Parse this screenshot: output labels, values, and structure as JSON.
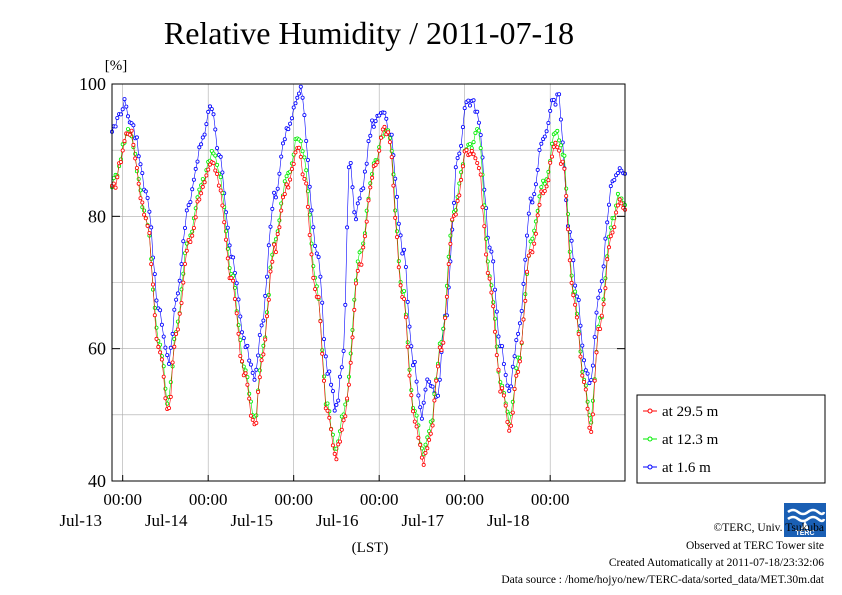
{
  "chart_data": {
    "type": "line",
    "title": "Relative Humidity / 2011-07-18",
    "ylabel": "[%]",
    "xlabel": "(LST)",
    "ylim": [
      40,
      100
    ],
    "yticks": [
      40,
      60,
      80,
      100
    ],
    "xlim": [
      0,
      6
    ],
    "x_unit": "days from 2011-07-12 21:00 LST, one value per 30 min",
    "x_ticks": [
      {
        "x": 0.125,
        "time": "00:00",
        "date": "Jul-13"
      },
      {
        "x": 1.125,
        "time": "00:00",
        "date": "Jul-14"
      },
      {
        "x": 2.125,
        "time": "00:00",
        "date": "Jul-15"
      },
      {
        "x": 3.125,
        "time": "00:00",
        "date": "Jul-16"
      },
      {
        "x": 4.125,
        "time": "00:00",
        "date": "Jul-17"
      },
      {
        "x": 5.125,
        "time": "00:00",
        "date": "Jul-18"
      }
    ],
    "grid": true,
    "legend_position": "right-outside",
    "series": [
      {
        "name": "at 29.5 m",
        "color": "#ff0000",
        "marker": "circle",
        "anchors": [
          [
            0,
            84
          ],
          [
            0.2,
            93
          ],
          [
            0.4,
            80
          ],
          [
            0.55,
            60
          ],
          [
            0.66,
            51
          ],
          [
            0.75,
            62
          ],
          [
            0.9,
            76
          ],
          [
            1.05,
            84
          ],
          [
            1.18,
            88
          ],
          [
            1.25,
            85
          ],
          [
            1.4,
            70
          ],
          [
            1.55,
            56
          ],
          [
            1.67,
            48
          ],
          [
            1.75,
            58
          ],
          [
            1.9,
            75
          ],
          [
            2.05,
            85
          ],
          [
            2.18,
            91
          ],
          [
            2.23,
            87
          ],
          [
            2.4,
            68
          ],
          [
            2.52,
            50
          ],
          [
            2.62,
            44
          ],
          [
            2.72,
            50
          ],
          [
            2.9,
            73
          ],
          [
            3.07,
            87
          ],
          [
            3.18,
            93
          ],
          [
            3.23,
            92
          ],
          [
            3.4,
            68
          ],
          [
            3.53,
            50
          ],
          [
            3.64,
            43
          ],
          [
            3.72,
            47
          ],
          [
            3.85,
            60
          ],
          [
            4.0,
            80
          ],
          [
            4.15,
            90
          ],
          [
            4.22,
            90
          ],
          [
            4.28,
            88
          ],
          [
            4.42,
            70
          ],
          [
            4.55,
            54
          ],
          [
            4.65,
            48
          ],
          [
            4.75,
            57
          ],
          [
            4.9,
            75
          ],
          [
            5.05,
            84
          ],
          [
            5.2,
            91
          ],
          [
            5.27,
            88
          ],
          [
            5.4,
            68
          ],
          [
            5.52,
            55
          ],
          [
            5.6,
            48
          ],
          [
            5.7,
            63
          ],
          [
            5.85,
            78
          ],
          [
            5.92,
            82
          ],
          [
            6.0,
            81
          ]
        ]
      },
      {
        "name": "at 12.3 m",
        "color": "#00ee00",
        "marker": "circle",
        "anchors": [
          [
            0,
            85
          ],
          [
            0.2,
            93
          ],
          [
            0.4,
            80
          ],
          [
            0.55,
            61
          ],
          [
            0.66,
            52
          ],
          [
            0.75,
            63
          ],
          [
            0.9,
            77
          ],
          [
            1.05,
            85
          ],
          [
            1.18,
            90
          ],
          [
            1.25,
            87
          ],
          [
            1.4,
            71
          ],
          [
            1.55,
            57
          ],
          [
            1.67,
            49
          ],
          [
            1.75,
            59
          ],
          [
            1.9,
            76
          ],
          [
            2.05,
            86
          ],
          [
            2.18,
            92
          ],
          [
            2.23,
            90
          ],
          [
            2.4,
            69
          ],
          [
            2.52,
            51
          ],
          [
            2.62,
            45
          ],
          [
            2.72,
            51
          ],
          [
            2.9,
            74
          ],
          [
            3.07,
            88
          ],
          [
            3.18,
            93
          ],
          [
            3.23,
            93
          ],
          [
            3.4,
            69
          ],
          [
            3.53,
            51
          ],
          [
            3.64,
            44
          ],
          [
            3.72,
            48
          ],
          [
            3.85,
            61
          ],
          [
            4.0,
            81
          ],
          [
            4.15,
            90
          ],
          [
            4.22,
            91
          ],
          [
            4.28,
            93
          ],
          [
            4.42,
            71
          ],
          [
            4.55,
            55
          ],
          [
            4.65,
            49
          ],
          [
            4.75,
            58
          ],
          [
            4.9,
            76
          ],
          [
            5.05,
            85
          ],
          [
            5.2,
            93
          ],
          [
            5.27,
            90
          ],
          [
            5.4,
            69
          ],
          [
            5.52,
            56
          ],
          [
            5.6,
            49
          ],
          [
            5.7,
            64
          ],
          [
            5.85,
            79
          ],
          [
            5.92,
            83
          ],
          [
            6.0,
            82
          ]
        ]
      },
      {
        "name": "at 1.6 m",
        "color": "#0000ff",
        "marker": "circle",
        "anchors": [
          [
            0,
            93
          ],
          [
            0.15,
            97
          ],
          [
            0.25,
            93
          ],
          [
            0.4,
            84
          ],
          [
            0.55,
            66
          ],
          [
            0.66,
            58
          ],
          [
            0.75,
            67
          ],
          [
            0.9,
            82
          ],
          [
            1.05,
            91
          ],
          [
            1.15,
            97
          ],
          [
            1.25,
            90
          ],
          [
            1.4,
            74
          ],
          [
            1.55,
            61
          ],
          [
            1.67,
            56
          ],
          [
            1.75,
            64
          ],
          [
            1.9,
            83
          ],
          [
            2.05,
            93
          ],
          [
            2.15,
            97
          ],
          [
            2.2,
            99
          ],
          [
            2.4,
            75
          ],
          [
            2.52,
            57
          ],
          [
            2.62,
            51
          ],
          [
            2.7,
            58
          ],
          [
            2.78,
            88
          ],
          [
            2.85,
            80
          ],
          [
            2.92,
            84
          ],
          [
            3.05,
            94
          ],
          [
            3.18,
            96
          ],
          [
            3.25,
            93
          ],
          [
            3.4,
            75
          ],
          [
            3.53,
            58
          ],
          [
            3.62,
            50
          ],
          [
            3.7,
            55
          ],
          [
            3.8,
            52
          ],
          [
            3.9,
            65
          ],
          [
            4.05,
            89
          ],
          [
            4.15,
            97
          ],
          [
            4.22,
            97
          ],
          [
            4.28,
            95
          ],
          [
            4.42,
            76
          ],
          [
            4.55,
            60
          ],
          [
            4.65,
            54
          ],
          [
            4.75,
            62
          ],
          [
            4.9,
            82
          ],
          [
            5.05,
            92
          ],
          [
            5.15,
            97
          ],
          [
            5.22,
            98
          ],
          [
            5.35,
            78
          ],
          [
            5.45,
            67
          ],
          [
            5.52,
            58
          ],
          [
            5.6,
            55
          ],
          [
            5.7,
            69
          ],
          [
            5.85,
            85
          ],
          [
            5.92,
            87
          ],
          [
            6.0,
            87
          ]
        ]
      }
    ]
  },
  "footer": {
    "copyright": "©TERC, Univ. Tsukuba",
    "observed": "Observed at TERC Tower site",
    "created": "Created Automatically at 2011-07-18/23:32:06",
    "source": "Data source : /home/hojyo/new/TERC-data/sorted_data/MET.30m.dat",
    "logo_text": "TERC"
  }
}
